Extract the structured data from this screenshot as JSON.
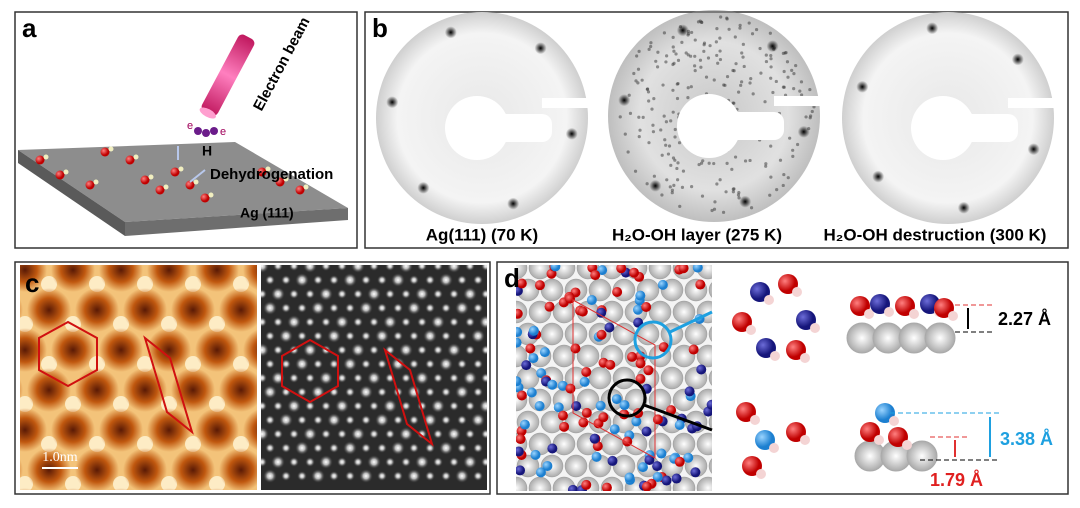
{
  "panel_a": {
    "label": "a",
    "electron_beam": "Electron beam",
    "electron_labels": [
      "e",
      "e"
    ],
    "hydrogen": "H",
    "process": "Dehydrogenation",
    "surface": "Ag (111)"
  },
  "panel_b": {
    "label": "b",
    "captions": [
      "Ag(111) (70 K)",
      "H₂O-OH layer (275 K)",
      "H₂O-OH destruction (300 K)"
    ]
  },
  "panel_c": {
    "label": "c",
    "scale_bar": "1.0nm"
  },
  "panel_d": {
    "label": "d",
    "heights": [
      "2.27 Å",
      "3.38 Å",
      "1.79 Å"
    ]
  }
}
